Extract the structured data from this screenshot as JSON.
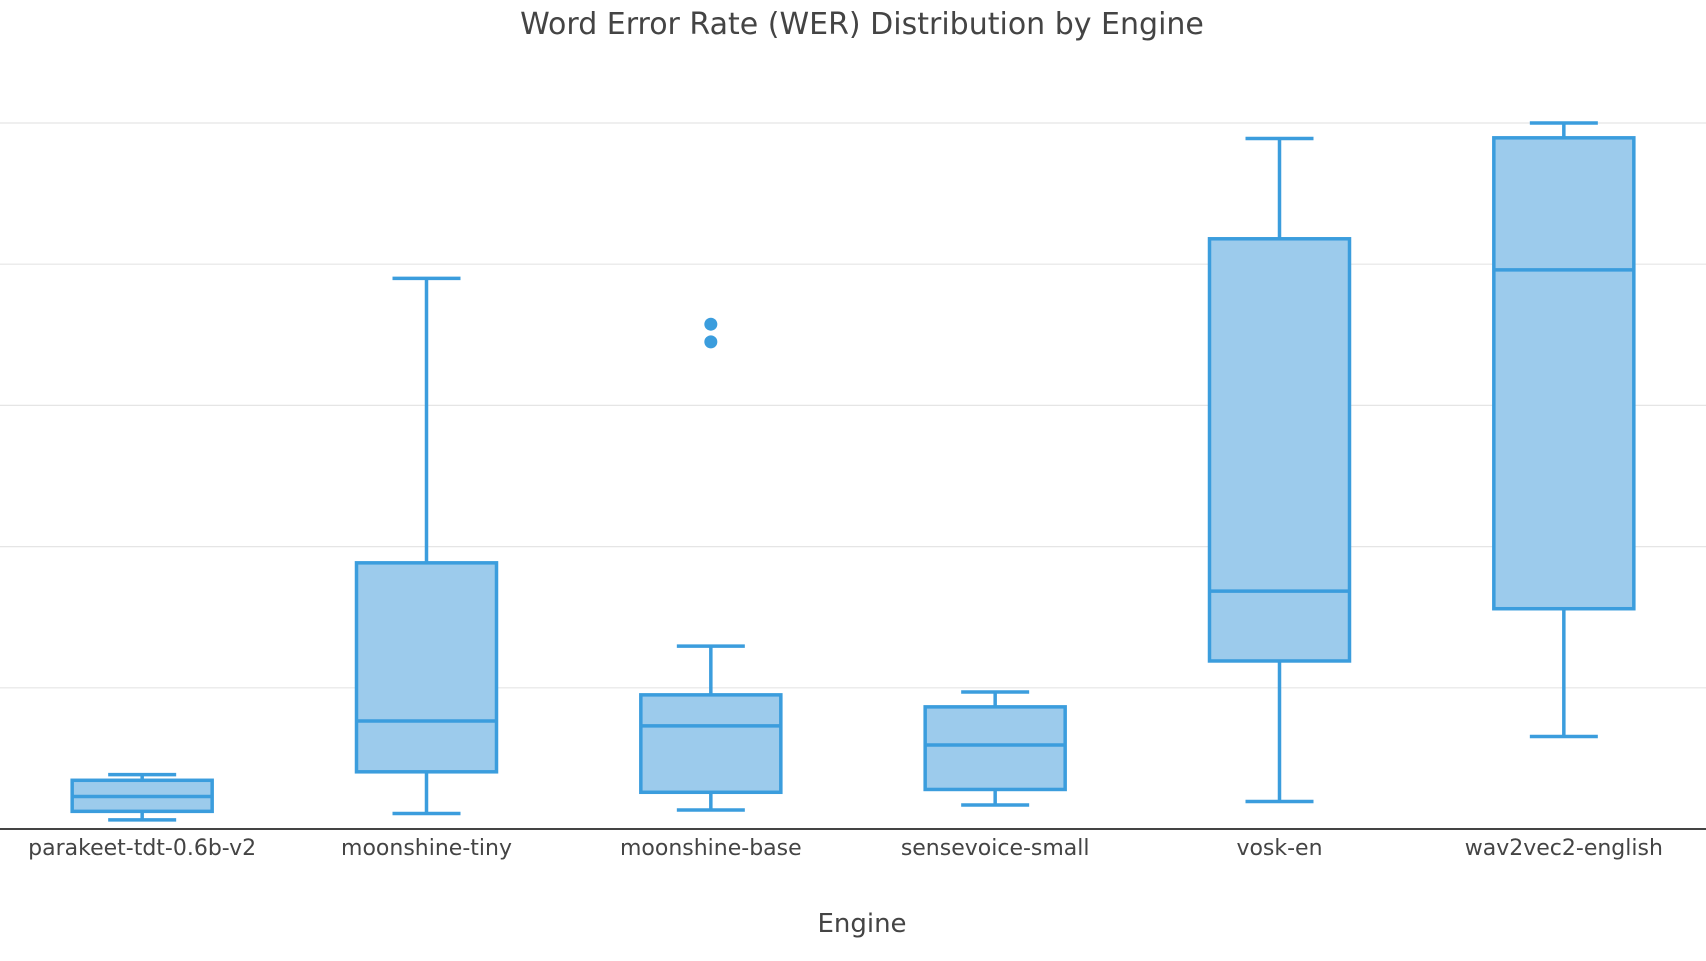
{
  "chart_data": {
    "type": "box",
    "title": "Word Error Rate (WER) Distribution by Engine",
    "xlabel": "Engine",
    "ylabel": "",
    "categories": [
      "parakeet-tdt-0.6b-v2",
      "moonshine-tiny",
      "moonshine-base",
      "sensevoice-small",
      "vosk-en",
      "wav2vec2-english"
    ],
    "ylim": [
      0,
      1
    ],
    "yticks": [
      0.2,
      0.4,
      0.6,
      0.8,
      1.0
    ],
    "show_ytick_labels": false,
    "grid": true,
    "color": "#3b9ddd",
    "fill": "#9ccbec",
    "boxes": [
      {
        "name": "parakeet-tdt-0.6b-v2",
        "lower_whisker": 0.013,
        "q1": 0.025,
        "median": 0.046,
        "q3": 0.069,
        "upper_whisker": 0.077,
        "outliers": []
      },
      {
        "name": "moonshine-tiny",
        "lower_whisker": 0.022,
        "q1": 0.081,
        "median": 0.153,
        "q3": 0.377,
        "upper_whisker": 0.78,
        "outliers": []
      },
      {
        "name": "moonshine-base",
        "lower_whisker": 0.027,
        "q1": 0.052,
        "median": 0.146,
        "q3": 0.19,
        "upper_whisker": 0.259,
        "outliers": [
          0.715,
          0.69
        ]
      },
      {
        "name": "sensevoice-small",
        "lower_whisker": 0.034,
        "q1": 0.056,
        "median": 0.119,
        "q3": 0.173,
        "upper_whisker": 0.194,
        "outliers": []
      },
      {
        "name": "vosk-en",
        "lower_whisker": 0.039,
        "q1": 0.238,
        "median": 0.337,
        "q3": 0.836,
        "upper_whisker": 0.978,
        "outliers": []
      },
      {
        "name": "wav2vec2-english",
        "lower_whisker": 0.131,
        "q1": 0.312,
        "median": 0.792,
        "q3": 0.979,
        "upper_whisker": 1.0,
        "outliers": []
      }
    ]
  }
}
